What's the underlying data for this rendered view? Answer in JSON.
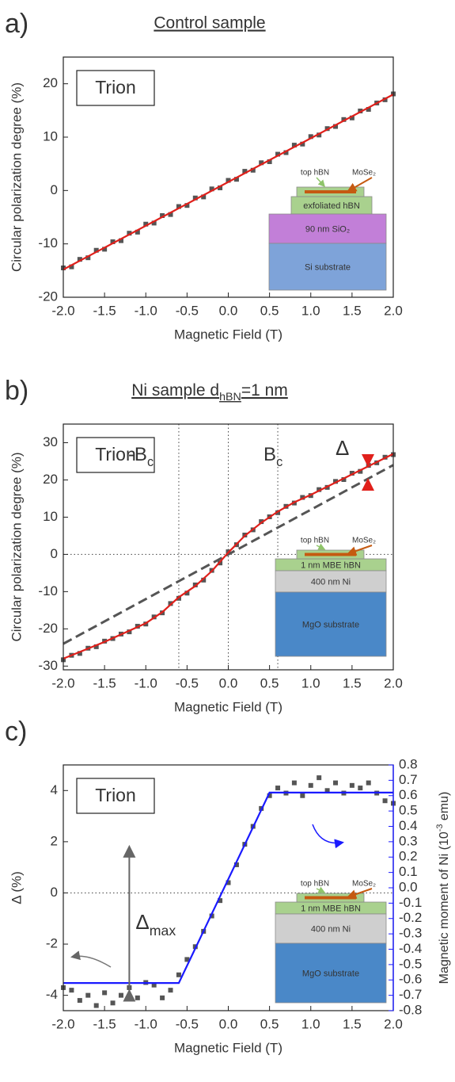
{
  "chart_data": [
    {
      "type": "scatter",
      "label": "a)",
      "title": "Control sample",
      "box_label": "Trion",
      "xlabel": "Magnetic Field (T)",
      "ylabel": "Circular polarization degree (%)",
      "xlim": [
        -2,
        2
      ],
      "ylim": [
        -20,
        25
      ],
      "xticks": [
        {
          "value": -2,
          "label": "-2.0"
        },
        -1.5,
        {
          "value": -1,
          "label": "-1.0"
        },
        -0.5,
        {
          "value": 0,
          "label": "0.0"
        },
        0.5,
        {
          "value": 1,
          "label": "1.0"
        },
        1.5,
        {
          "value": 2,
          "label": "2.0"
        }
      ],
      "yticks": [
        -20,
        -10,
        0,
        10,
        20
      ],
      "color": "#555555",
      "x": [
        -2.0,
        -1.9,
        -1.8,
        -1.7,
        -1.6,
        -1.5,
        -1.4,
        -1.3,
        -1.2,
        -1.1,
        -1.0,
        -0.9,
        -0.8,
        -0.7,
        -0.6,
        -0.5,
        -0.4,
        -0.3,
        -0.2,
        -0.1,
        0.0,
        0.1,
        0.2,
        0.3,
        0.4,
        0.5,
        0.6,
        0.7,
        0.8,
        0.9,
        1.0,
        1.1,
        1.2,
        1.3,
        1.4,
        1.5,
        1.6,
        1.7,
        1.8,
        1.9,
        2.0
      ],
      "values": [
        -14.5,
        -14.3,
        -12.9,
        -12.6,
        -11.2,
        -11.0,
        -9.6,
        -9.4,
        -8.0,
        -7.8,
        -6.3,
        -6.1,
        -4.7,
        -4.5,
        -3.0,
        -2.8,
        -1.4,
        -1.2,
        0.3,
        0.5,
        1.9,
        2.1,
        3.6,
        3.8,
        5.2,
        5.4,
        6.8,
        7.1,
        8.5,
        8.7,
        10.1,
        10.4,
        11.6,
        12.0,
        13.3,
        13.6,
        14.9,
        15.2,
        16.4,
        17.0,
        18.1
      ],
      "fit": {
        "color": "#e0201b",
        "x": [
          -2,
          2
        ],
        "values": [
          -14.8,
          18.0
        ]
      },
      "inset": {
        "top": "top hBN",
        "flake": "MoSe₂",
        "layers": [
          "exfoliated hBN",
          "90 nm SiO₂",
          "Si substrate"
        ]
      }
    },
    {
      "type": "scatter",
      "label": "b)",
      "title": [
        "Ni sample d",
        "hBN",
        "=1 nm"
      ],
      "box_label": "Trion",
      "xlabel": "Magnetic Field (T)",
      "ylabel": "Circular polarization degree (%)",
      "xlim": [
        -2,
        2
      ],
      "ylim": [
        -31,
        35
      ],
      "xticks": [
        {
          "value": -2,
          "label": "-2.0"
        },
        -1.5,
        {
          "value": -1,
          "label": "-1.0"
        },
        -0.5,
        {
          "value": 0,
          "label": "0.0"
        },
        0.5,
        {
          "value": 1,
          "label": "1.0"
        },
        1.5,
        {
          "value": 2,
          "label": "2.0"
        }
      ],
      "yticks": [
        -30,
        -20,
        -10,
        0,
        10,
        20,
        30
      ],
      "vlines": [
        -0.6,
        0,
        0.6
      ],
      "hline": 0,
      "annotations": [
        [
          "-B",
          "c"
        ],
        [
          "B",
          "c"
        ]
      ],
      "delta": "Δ",
      "color": "#555555",
      "x": [
        -2.0,
        -1.9,
        -1.8,
        -1.7,
        -1.6,
        -1.5,
        -1.4,
        -1.3,
        -1.2,
        -1.1,
        -1.0,
        -0.9,
        -0.8,
        -0.7,
        -0.6,
        -0.5,
        -0.4,
        -0.3,
        -0.2,
        -0.1,
        0.0,
        0.1,
        0.2,
        0.3,
        0.4,
        0.5,
        0.6,
        0.7,
        0.8,
        0.9,
        1.0,
        1.1,
        1.2,
        1.3,
        1.4,
        1.5,
        1.6,
        1.7,
        1.8,
        1.9,
        2.0
      ],
      "values": [
        -28.3,
        -27.1,
        -26.6,
        -25.2,
        -24.8,
        -23.3,
        -22.6,
        -21.4,
        -20.8,
        -19.3,
        -18.7,
        -16.8,
        -15.7,
        -13.2,
        -11.8,
        -10.4,
        -8.2,
        -6.9,
        -4.3,
        -2.3,
        0.7,
        2.6,
        5.2,
        6.6,
        8.8,
        10.1,
        11.2,
        12.9,
        13.8,
        15.3,
        15.8,
        17.4,
        18.0,
        19.6,
        20.1,
        21.8,
        22.3,
        23.9,
        24.6,
        26.1,
        26.8
      ],
      "dashed": {
        "color": "#555555",
        "x": [
          -2,
          2
        ],
        "values": [
          -24,
          24
        ]
      },
      "fit": {
        "color": "#e0201b",
        "x": [
          -2,
          -1.5,
          -1,
          -0.8,
          -0.6,
          -0.4,
          -0.2,
          0,
          0.2,
          0.4,
          0.6,
          0.8,
          1,
          1.5,
          2
        ],
        "values": [
          -28,
          -23.5,
          -18.5,
          -15.5,
          -11.5,
          -8.5,
          -4.5,
          0.5,
          5,
          8.5,
          11.5,
          14,
          16,
          21.5,
          27
        ]
      },
      "inset": {
        "top": "top hBN",
        "flake": "MoSe₂",
        "layers": [
          "1 nm MBE hBN",
          "400 nm Ni",
          "MgO substrate"
        ]
      }
    },
    {
      "type": "scatter",
      "label": "c)",
      "box_label": "Trion",
      "xlabel": "Magnetic Field (T)",
      "ylabel": "Δ (%)",
      "y2label": [
        "Magnetic moment of Ni (10",
        "-3",
        " emu)"
      ],
      "xlim": [
        -2,
        2
      ],
      "ylim": [
        -4.6,
        5
      ],
      "y2lim": [
        -0.8,
        0.8
      ],
      "xticks": [
        {
          "value": -2,
          "label": "-2.0"
        },
        -1.5,
        {
          "value": -1,
          "label": "-1.0"
        },
        -0.5,
        {
          "value": 0,
          "label": "0.0"
        },
        0.5,
        {
          "value": 1,
          "label": "1.0"
        },
        1.5,
        {
          "value": 2,
          "label": "2.0"
        }
      ],
      "yticks": [
        -4,
        -2,
        0,
        2,
        4
      ],
      "y2ticks": [
        -0.8,
        -0.7,
        -0.6,
        -0.5,
        -0.4,
        -0.3,
        -0.2,
        -0.1,
        {
          "value": 0,
          "label": "0.0"
        },
        0.1,
        0.2,
        0.3,
        0.4,
        0.5,
        0.6,
        0.7,
        0.8
      ],
      "y2color": "#1a1aff",
      "hline": 0,
      "delta_max": [
        "Δ",
        "max"
      ],
      "color": "#555555",
      "x": [
        -2.0,
        -1.9,
        -1.8,
        -1.7,
        -1.6,
        -1.5,
        -1.4,
        -1.3,
        -1.2,
        -1.1,
        -1.0,
        -0.9,
        -0.8,
        -0.7,
        -0.6,
        -0.5,
        -0.4,
        -0.3,
        -0.2,
        -0.1,
        0.0,
        0.1,
        0.2,
        0.3,
        0.4,
        0.5,
        0.6,
        0.7,
        0.8,
        0.9,
        1.0,
        1.1,
        1.2,
        1.3,
        1.4,
        1.5,
        1.6,
        1.7,
        1.8,
        1.9,
        2.0
      ],
      "values": [
        -3.7,
        -3.8,
        -4.2,
        -4.0,
        -4.4,
        -3.9,
        -4.3,
        -4.0,
        -3.7,
        -4.1,
        -3.5,
        -3.6,
        -4.1,
        -3.8,
        -3.2,
        -2.6,
        -2.1,
        -1.5,
        -0.9,
        -0.3,
        0.4,
        1.1,
        1.9,
        2.6,
        3.3,
        3.8,
        4.1,
        3.9,
        4.3,
        3.8,
        4.2,
        4.5,
        4.0,
        4.3,
        3.9,
        4.2,
        4.1,
        4.3,
        3.9,
        3.6,
        3.5
      ],
      "fit": {
        "color": "#1a1aff",
        "axis": "y2",
        "x": [
          -2,
          -0.6,
          0.5,
          2
        ],
        "values": [
          -0.62,
          -0.62,
          0.62,
          0.62
        ]
      },
      "inset": {
        "top": "top hBN",
        "flake": "MoSe₂",
        "layers": [
          "1 nm MBE hBN",
          "400 nm Ni",
          "MgO substrate"
        ]
      }
    }
  ]
}
